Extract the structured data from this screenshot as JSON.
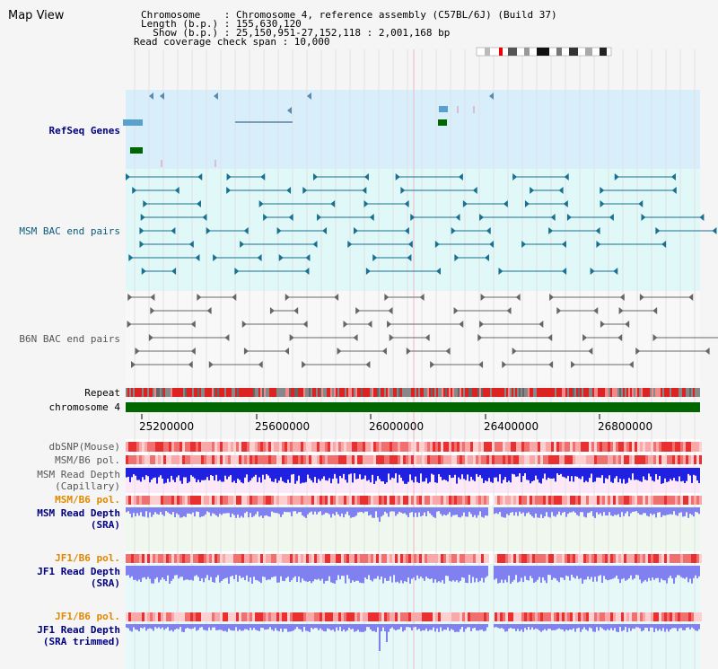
{
  "title": "Map View",
  "info": {
    "chromosome_line": "Chromosome    : Chromosome 4, reference assembly (C57BL/6J) (Build 37)",
    "length_line": "Length (b.p.) : 155,630,120",
    "show_line": "  Show (b.p.) : 25,150,951-27,152,118 : 2,001,168 bp",
    "coverage_line": "Read coverage check span : 10,000"
  },
  "tracks": {
    "refseq": "RefSeq Genes",
    "msm_bac": "MSM BAC end pairs",
    "b6n_bac": "B6N BAC end pairs",
    "repeat": "Repeat",
    "chromosome": "chromosome 4",
    "dbsnp": "dbSNP(Mouse)",
    "msm_b6_pol_1": "MSM/B6 pol.",
    "msm_read_depth_cap_1": "MSM Read Depth",
    "msm_read_depth_cap_2": "(Capillary)",
    "msm_b6_pol_2": "MSM/B6 pol.",
    "msm_read_depth_sra_1": "MSM Read Depth",
    "msm_read_depth_sra_2": "(SRA)",
    "jf1_b6_pol_1": "JF1/B6 pol.",
    "jf1_read_depth_sra_1": "JF1 Read Depth",
    "jf1_read_depth_sra_2": "(SRA)",
    "jf1_b6_pol_2": "JF1/B6 pol.",
    "jf1_read_depth_trim_1": "JF1 Read Depth",
    "jf1_read_depth_trim_2": "(SRA trimmed)"
  },
  "axis": {
    "ticks": [
      "25200000",
      "25600000",
      "26000000",
      "26400000",
      "26800000"
    ]
  },
  "colors": {
    "refseq_bg": "#d8eefa",
    "msm_bac_bg": "#e0f8f8",
    "chrom_green": "#006600",
    "gene_navy": "#002a66",
    "gene_lightblue": "#5aa0cc",
    "gene_green": "#006600",
    "bac_teal": "#1a7090",
    "bac_grey": "#666666",
    "depth_blue": "#2020e0",
    "depth_lav": "#8080f0"
  }
}
